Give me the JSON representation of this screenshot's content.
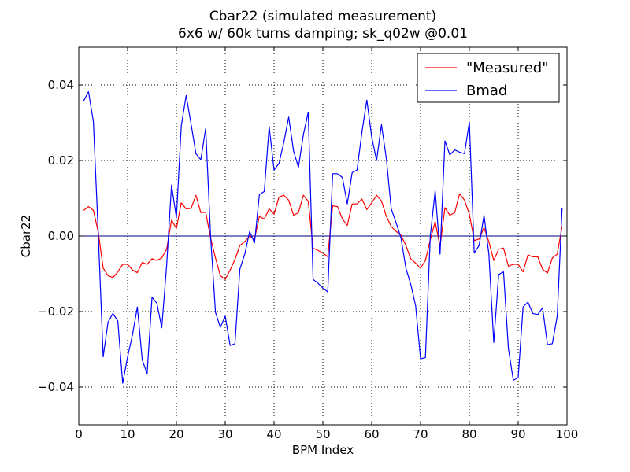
{
  "chart_data": {
    "type": "line",
    "title": "Cbar22 (simulated measurement)",
    "subtitle": "6x6 w/ 60k turns damping; sk_q02w @0.01",
    "xlabel": "BPM Index",
    "ylabel": "Cbar22",
    "xlim": [
      0,
      100
    ],
    "ylim": [
      -0.05,
      0.05
    ],
    "xticks": [
      0,
      10,
      20,
      30,
      40,
      50,
      60,
      70,
      80,
      90,
      100
    ],
    "yticks": [
      -0.04,
      -0.02,
      0.0,
      0.02,
      0.04
    ],
    "xtick_labels": [
      "0",
      "10",
      "20",
      "30",
      "40",
      "50",
      "60",
      "70",
      "80",
      "90",
      "100"
    ],
    "ytick_labels": [
      "−0.04",
      "−0.02",
      "0.00",
      "0.02",
      "0.04"
    ],
    "grid": true,
    "legend_position": "top-right",
    "reference_line": {
      "y": 0.0,
      "color": "#000080"
    },
    "x": [
      1,
      2,
      3,
      4,
      5,
      6,
      7,
      8,
      9,
      10,
      11,
      12,
      13,
      14,
      15,
      16,
      17,
      18,
      19,
      20,
      21,
      22,
      23,
      24,
      25,
      26,
      27,
      28,
      29,
      30,
      31,
      32,
      33,
      34,
      35,
      36,
      37,
      38,
      39,
      40,
      41,
      42,
      43,
      44,
      45,
      46,
      47,
      48,
      49,
      50,
      51,
      52,
      53,
      54,
      55,
      56,
      57,
      58,
      59,
      60,
      61,
      62,
      63,
      64,
      65,
      66,
      67,
      68,
      69,
      70,
      71,
      72,
      73,
      74,
      75,
      76,
      77,
      78,
      79,
      80,
      81,
      82,
      83,
      84,
      85,
      86,
      87,
      88,
      89,
      90,
      91,
      92,
      93,
      94,
      95,
      96,
      97,
      98,
      99
    ],
    "series": [
      {
        "name": "\"Measured\"",
        "color": "#ff0000",
        "values": [
          0.0068,
          0.0078,
          0.0068,
          0.001,
          -0.0085,
          -0.0105,
          -0.011,
          -0.0095,
          -0.0075,
          -0.0075,
          -0.009,
          -0.0097,
          -0.007,
          -0.0075,
          -0.006,
          -0.0065,
          -0.0058,
          -0.0035,
          0.0042,
          0.002,
          0.0088,
          0.0072,
          0.0073,
          0.0108,
          0.0062,
          0.0063,
          -0.0005,
          -0.0058,
          -0.0105,
          -0.0115,
          -0.009,
          -0.0062,
          -0.0025,
          -0.0015,
          0.0,
          -0.0008,
          0.0052,
          0.0045,
          0.0072,
          0.0058,
          0.0103,
          0.0108,
          0.0095,
          0.0055,
          0.0062,
          0.0108,
          0.0092,
          -0.0032,
          -0.0038,
          -0.0045,
          -0.0055,
          0.008,
          0.0078,
          0.0045,
          0.0028,
          0.0085,
          0.0085,
          0.0098,
          0.007,
          0.0088,
          0.0108,
          0.0093,
          0.0052,
          0.0025,
          0.0012,
          0.0002,
          -0.0025,
          -0.006,
          -0.0072,
          -0.0085,
          -0.0065,
          -0.001,
          0.0038,
          -0.0028,
          0.0075,
          0.0055,
          0.0062,
          0.0112,
          0.0095,
          0.0058,
          -0.0012,
          -0.0008,
          0.0022,
          -0.0015,
          -0.0065,
          -0.0035,
          -0.0032,
          -0.008,
          -0.0075,
          -0.0075,
          -0.0095,
          -0.005,
          -0.0055,
          -0.0055,
          -0.0088,
          -0.0098,
          -0.0058,
          -0.0048,
          0.0025
        ]
      },
      {
        "name": "Bmad",
        "color": "#0000ff",
        "values": [
          0.0358,
          0.0382,
          0.0302,
          0.0005,
          -0.032,
          -0.0228,
          -0.0205,
          -0.0225,
          -0.039,
          -0.032,
          -0.0262,
          -0.0188,
          -0.0328,
          -0.0365,
          -0.0162,
          -0.0178,
          -0.0243,
          -0.0078,
          0.0135,
          0.0048,
          0.0292,
          0.0372,
          0.0297,
          0.0218,
          0.0202,
          0.0285,
          0.0,
          -0.0202,
          -0.0242,
          -0.0212,
          -0.029,
          -0.0285,
          -0.0088,
          -0.0048,
          0.0012,
          -0.0018,
          0.011,
          0.0118,
          0.029,
          0.0175,
          0.0192,
          0.0248,
          0.0315,
          0.0225,
          0.0182,
          0.0268,
          0.0328,
          -0.0115,
          -0.0125,
          -0.0138,
          -0.0148,
          0.0165,
          0.0165,
          0.0155,
          0.0085,
          0.0168,
          0.0175,
          0.0275,
          0.036,
          0.0262,
          0.02,
          0.0295,
          0.0205,
          0.0072,
          0.0035,
          -0.0005,
          -0.0085,
          -0.0128,
          -0.0185,
          -0.0325,
          -0.0322,
          0.0,
          0.012,
          -0.0048,
          0.0252,
          0.0215,
          0.0228,
          0.0222,
          0.0218,
          0.0302,
          -0.0045,
          -0.0025,
          0.0055,
          -0.0048,
          -0.0282,
          -0.0102,
          -0.0095,
          -0.0298,
          -0.0382,
          -0.0375,
          -0.0188,
          -0.0175,
          -0.0205,
          -0.0208,
          -0.019,
          -0.0288,
          -0.0285,
          -0.0212,
          0.0075
        ]
      }
    ]
  }
}
